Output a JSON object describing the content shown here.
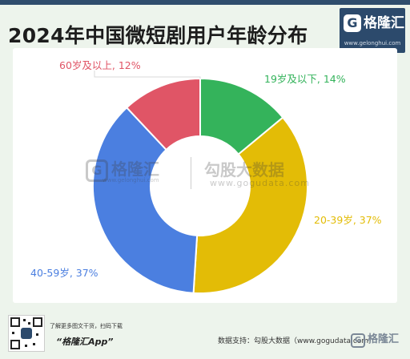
{
  "header": {
    "title": "2024年中国微短剧用户年龄分布",
    "logo_mark": "G",
    "logo_name": "格隆汇",
    "logo_url": "www.gelonghui.com"
  },
  "watermark": {
    "logo_mark": "G",
    "logo_name": "格隆汇",
    "logo_url": "www.gelonghui.com",
    "brand": "勾股大数据",
    "brand_url": "www.gogudata.com"
  },
  "chart_data": {
    "type": "pie",
    "donut": true,
    "categories": [
      "19岁及以下",
      "20-39岁",
      "40-59岁",
      "60岁及以上"
    ],
    "values": [
      14,
      37,
      37,
      12
    ],
    "labels": [
      "19岁及以下, 14%",
      "20-39岁, 37%",
      "40-59岁, 37%",
      "60岁及以上, 12%"
    ],
    "colors": [
      "#34b35b",
      "#e3bc06",
      "#4b7fe0",
      "#e05566"
    ],
    "title": "2024年中国微短剧用户年龄分布"
  },
  "footer": {
    "promo": "了解更多图文干货，扫码下载",
    "app_name": "“格隆汇App”",
    "source": "数据支持：勾股大数据（www.gogudata.com）",
    "logo_mark": "G",
    "logo_name": "格隆汇"
  }
}
